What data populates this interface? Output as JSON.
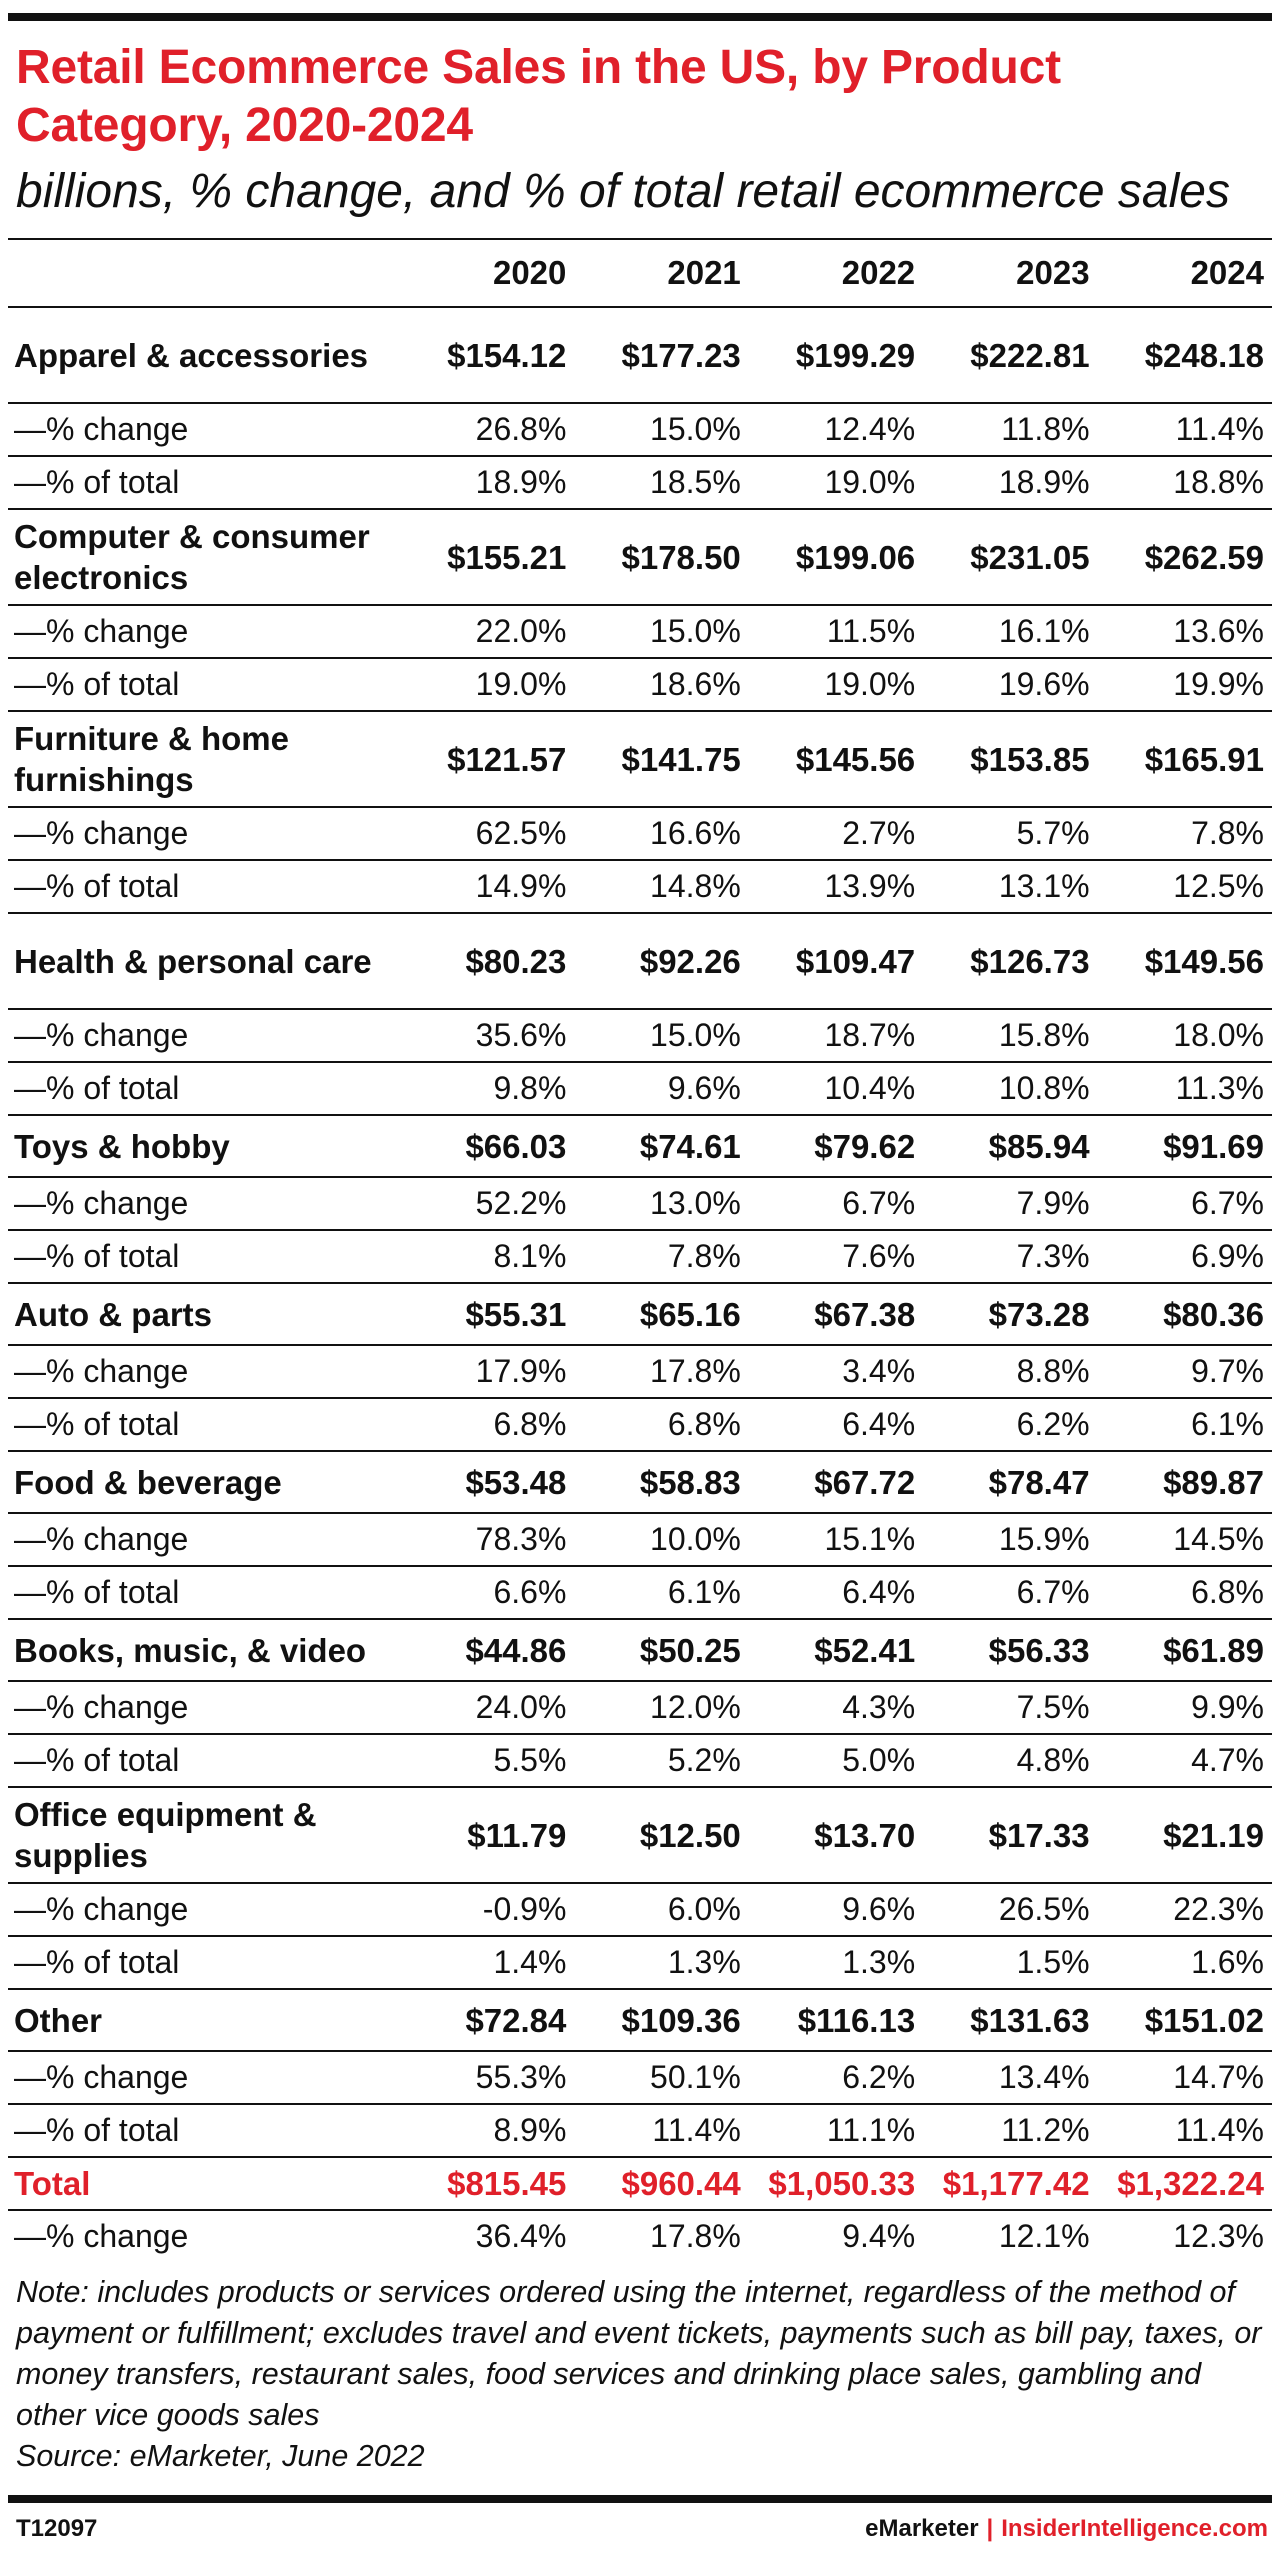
{
  "title": "Retail Ecommerce Sales in the US, by Product Category, 2020-2024",
  "subtitle": "billions, % change, and % of total retail ecommerce sales",
  "chart_data": {
    "type": "table",
    "columns": [
      "2020",
      "2021",
      "2022",
      "2023",
      "2024"
    ],
    "rows": [
      {
        "label": "Apparel & accessories",
        "values": [
          "$154.12",
          "$177.23",
          "$199.29",
          "$222.81",
          "$248.18"
        ],
        "change": [
          "26.8%",
          "15.0%",
          "12.4%",
          "11.8%",
          "11.4%"
        ],
        "share": [
          "18.9%",
          "18.5%",
          "19.0%",
          "18.9%",
          "18.8%"
        ]
      },
      {
        "label": "Computer & consumer electronics",
        "values": [
          "$155.21",
          "$178.50",
          "$199.06",
          "$231.05",
          "$262.59"
        ],
        "change": [
          "22.0%",
          "15.0%",
          "11.5%",
          "16.1%",
          "13.6%"
        ],
        "share": [
          "19.0%",
          "18.6%",
          "19.0%",
          "19.6%",
          "19.9%"
        ]
      },
      {
        "label": "Furniture & home furnishings",
        "values": [
          "$121.57",
          "$141.75",
          "$145.56",
          "$153.85",
          "$165.91"
        ],
        "change": [
          "62.5%",
          "16.6%",
          "2.7%",
          "5.7%",
          "7.8%"
        ],
        "share": [
          "14.9%",
          "14.8%",
          "13.9%",
          "13.1%",
          "12.5%"
        ]
      },
      {
        "label": "Health & personal care",
        "values": [
          "$80.23",
          "$92.26",
          "$109.47",
          "$126.73",
          "$149.56"
        ],
        "change": [
          "35.6%",
          "15.0%",
          "18.7%",
          "15.8%",
          "18.0%"
        ],
        "share": [
          "9.8%",
          "9.6%",
          "10.4%",
          "10.8%",
          "11.3%"
        ]
      },
      {
        "label": "Toys & hobby",
        "values": [
          "$66.03",
          "$74.61",
          "$79.62",
          "$85.94",
          "$91.69"
        ],
        "change": [
          "52.2%",
          "13.0%",
          "6.7%",
          "7.9%",
          "6.7%"
        ],
        "share": [
          "8.1%",
          "7.8%",
          "7.6%",
          "7.3%",
          "6.9%"
        ]
      },
      {
        "label": "Auto & parts",
        "values": [
          "$55.31",
          "$65.16",
          "$67.38",
          "$73.28",
          "$80.36"
        ],
        "change": [
          "17.9%",
          "17.8%",
          "3.4%",
          "8.8%",
          "9.7%"
        ],
        "share": [
          "6.8%",
          "6.8%",
          "6.4%",
          "6.2%",
          "6.1%"
        ]
      },
      {
        "label": "Food & beverage",
        "values": [
          "$53.48",
          "$58.83",
          "$67.72",
          "$78.47",
          "$89.87"
        ],
        "change": [
          "78.3%",
          "10.0%",
          "15.1%",
          "15.9%",
          "14.5%"
        ],
        "share": [
          "6.6%",
          "6.1%",
          "6.4%",
          "6.7%",
          "6.8%"
        ]
      },
      {
        "label": "Books, music, & video",
        "values": [
          "$44.86",
          "$50.25",
          "$52.41",
          "$56.33",
          "$61.89"
        ],
        "change": [
          "24.0%",
          "12.0%",
          "4.3%",
          "7.5%",
          "9.9%"
        ],
        "share": [
          "5.5%",
          "5.2%",
          "5.0%",
          "4.8%",
          "4.7%"
        ]
      },
      {
        "label": "Office equipment & supplies",
        "values": [
          "$11.79",
          "$12.50",
          "$13.70",
          "$17.33",
          "$21.19"
        ],
        "change": [
          "-0.9%",
          "6.0%",
          "9.6%",
          "26.5%",
          "22.3%"
        ],
        "share": [
          "1.4%",
          "1.3%",
          "1.3%",
          "1.5%",
          "1.6%"
        ]
      },
      {
        "label": "Other",
        "values": [
          "$72.84",
          "$109.36",
          "$116.13",
          "$131.63",
          "$151.02"
        ],
        "change": [
          "55.3%",
          "50.1%",
          "6.2%",
          "13.4%",
          "14.7%"
        ],
        "share": [
          "8.9%",
          "11.4%",
          "11.1%",
          "11.2%",
          "11.4%"
        ]
      }
    ],
    "total": {
      "label": "Total",
      "values": [
        "$815.45",
        "$960.44",
        "$1,050.33",
        "$1,177.42",
        "$1,322.24"
      ],
      "change": [
        "36.4%",
        "17.8%",
        "9.4%",
        "12.1%",
        "12.3%"
      ]
    },
    "change_label": "—% change",
    "share_label": "—% of total"
  },
  "note": "Note: includes products or services ordered using the internet, regardless of the method of payment or fulfillment; excludes travel and event tickets, payments such as bill pay, taxes, or money transfers, restaurant sales, food services and drinking place sales, gambling and other vice goods sales",
  "source": "Source: eMarketer, June 2022",
  "footer": {
    "code": "T12097",
    "brand_left": "eMarketer",
    "brand_sep": "|",
    "brand_right": "InsiderIntelligence.com"
  },
  "colors": {
    "accent": "#e0202a",
    "text": "#111111",
    "rules": "#111111"
  }
}
